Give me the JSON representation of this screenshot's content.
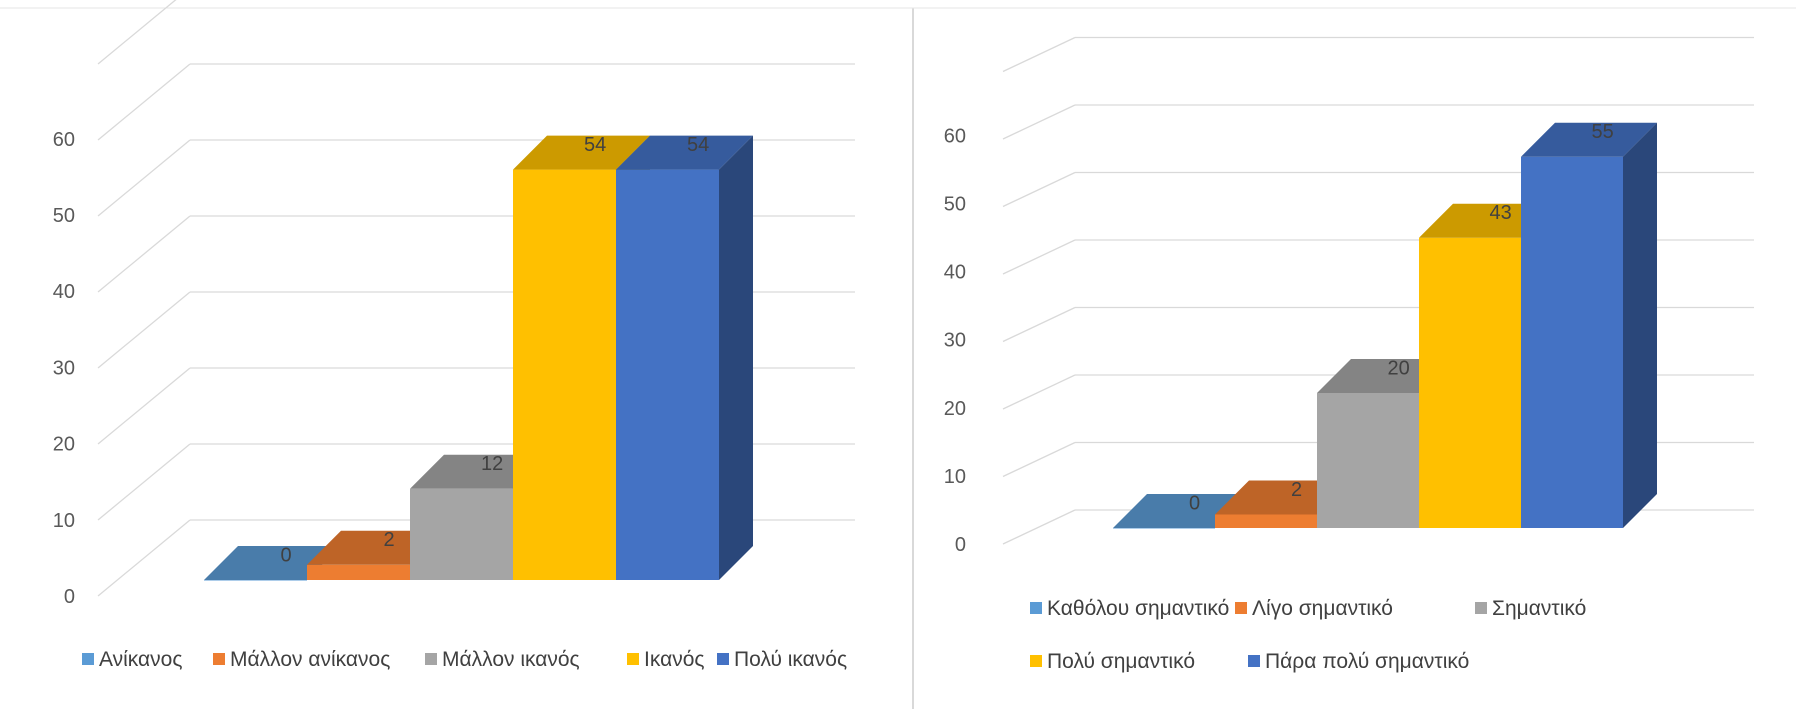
{
  "chart_data": [
    {
      "type": "bar",
      "categories": [
        "Ανίκανος",
        "Μάλλον ανίκανος",
        "Μάλλον ικανός",
        "Ικανός",
        "Πολύ ικανός"
      ],
      "values": [
        0,
        2,
        12,
        54,
        54
      ],
      "data_labels": [
        "0",
        "2",
        "12",
        "54",
        "54"
      ],
      "colors": [
        "#5B9BD5",
        "#ED7D31",
        "#A5A5A5",
        "#FFC000",
        "#4472C4"
      ],
      "yticks": [
        "0",
        "10",
        "20",
        "30",
        "40",
        "50",
        "60"
      ],
      "ylim": [
        0,
        70
      ],
      "grid": true,
      "legend_position": "bottom",
      "style": "3d-columns",
      "title": "",
      "xlabel": "",
      "ylabel": ""
    },
    {
      "type": "bar",
      "categories": [
        "Καθόλου σημαντικό",
        "Λίγο σημαντικό",
        "Σημαντικό",
        "Πολύ σημαντικό",
        "Πάρα πολύ σημαντικό"
      ],
      "values": [
        0,
        2,
        20,
        43,
        55
      ],
      "data_labels": [
        "0",
        "2",
        "20",
        "43",
        "55"
      ],
      "colors": [
        "#5B9BD5",
        "#ED7D31",
        "#A5A5A5",
        "#FFC000",
        "#4472C4"
      ],
      "yticks": [
        "0",
        "10",
        "20",
        "30",
        "40",
        "50",
        "60"
      ],
      "ylim": [
        0,
        70
      ],
      "grid": true,
      "legend_position": "bottom",
      "style": "3d-columns",
      "title": "",
      "xlabel": "",
      "ylabel": ""
    }
  ]
}
